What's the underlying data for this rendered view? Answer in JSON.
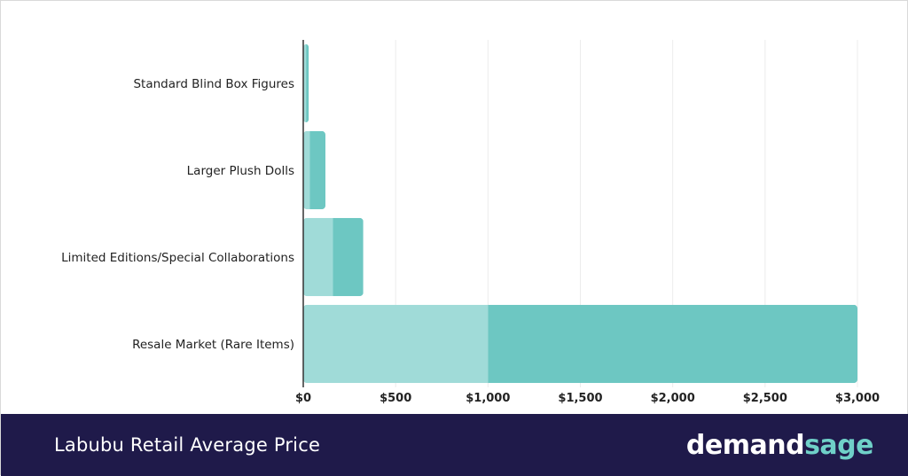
{
  "chart_data": {
    "type": "bar",
    "orientation": "horizontal",
    "stacked": true,
    "categories": [
      "Standard Blind Box Figures",
      "Larger Plush Dolls",
      "Limited Editions/Special Collaborations",
      "Resale Market (Rare Items)"
    ],
    "series": [
      {
        "values": [
          15,
          35,
          160,
          1000
        ]
      },
      {
        "values": [
          15,
          85,
          165,
          2000
        ]
      }
    ],
    "xlim": [
      0,
      3000
    ],
    "xticks": [
      0,
      500,
      1000,
      1500,
      2000,
      2500,
      3000
    ],
    "xtick_labels": [
      "$0",
      "$500",
      "$1,000",
      "$1,500",
      "$2,000",
      "$2,500",
      "$3,000"
    ],
    "grid": "vertical",
    "legend": "none",
    "colors": [
      "#a0dbd8",
      "#6dc7c2"
    ]
  },
  "footer": {
    "title": "Labubu Retail Average Price",
    "brand_part1": "demand",
    "brand_part2": "sage"
  },
  "colors": {
    "footer_bg": "#1f1a4a",
    "brand_accent": "#6fd0c8",
    "grid": "#ececec",
    "axis": "#333333"
  }
}
